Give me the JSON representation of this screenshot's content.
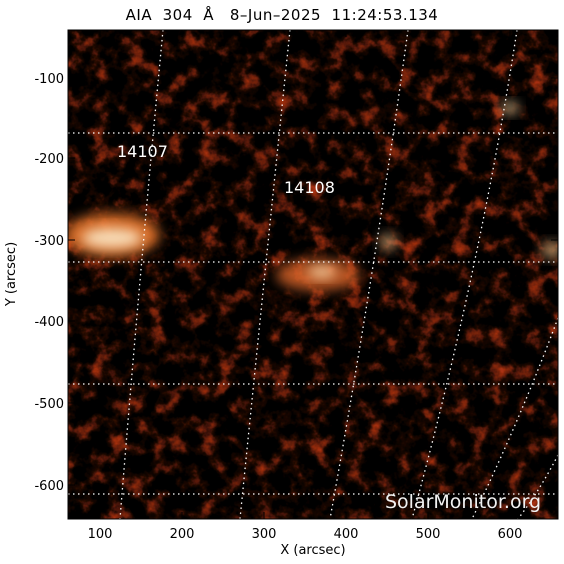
{
  "title": "AIA  304  Å   8–Jun–2025  11:24:53.134",
  "axes": {
    "xlabel": "X (arcsec)",
    "ylabel": "Y (arcsec)",
    "x_ticks": [
      "100",
      "200",
      "300",
      "400",
      "500",
      "600"
    ],
    "y_ticks": [
      "-100",
      "-200",
      "-300",
      "-400",
      "-500",
      "-600"
    ]
  },
  "regions": [
    {
      "label": "14107"
    },
    {
      "label": "14108"
    }
  ],
  "watermark": "SolarMonitor.org",
  "colors": {
    "background": "#000000",
    "active": "#c83a14",
    "bright": "#ffe2b4",
    "grid": "#ffffff"
  }
}
